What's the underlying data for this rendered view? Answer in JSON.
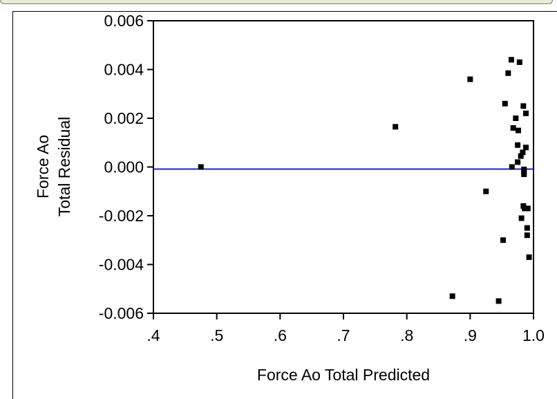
{
  "chart_data": {
    "type": "scatter",
    "title": "",
    "xlabel": "Force Ao Total Predicted",
    "ylabel_lines": [
      "Force Ao",
      "Total Residual"
    ],
    "xlim": [
      0.4,
      1.0
    ],
    "ylim": [
      -0.006,
      0.006
    ],
    "x_ticks": [
      {
        "value": 0.4,
        "label": ".4"
      },
      {
        "value": 0.5,
        "label": ".5"
      },
      {
        "value": 0.6,
        "label": ".6"
      },
      {
        "value": 0.7,
        "label": ".7"
      },
      {
        "value": 0.8,
        "label": ".8"
      },
      {
        "value": 0.9,
        "label": ".9"
      },
      {
        "value": 1.0,
        "label": "1.0"
      }
    ],
    "y_ticks": [
      {
        "value": 0.006,
        "label": "0.006"
      },
      {
        "value": 0.004,
        "label": "0.004"
      },
      {
        "value": 0.002,
        "label": "0.002"
      },
      {
        "value": 0.0,
        "label": "0.000"
      },
      {
        "value": -0.002,
        "label": "-0.002"
      },
      {
        "value": -0.004,
        "label": "-0.004"
      },
      {
        "value": -0.006,
        "label": "-0.006"
      }
    ],
    "reference_line": {
      "y": 0.0,
      "color": "#2222cc"
    },
    "marker_color": "#000000",
    "points": [
      {
        "x": 0.475,
        "y": 0.0
      },
      {
        "x": 0.782,
        "y": 0.00165
      },
      {
        "x": 0.9,
        "y": 0.0036
      },
      {
        "x": 0.925,
        "y": -0.001
      },
      {
        "x": 0.872,
        "y": -0.0053
      },
      {
        "x": 0.945,
        "y": -0.0055
      },
      {
        "x": 0.952,
        "y": -0.003
      },
      {
        "x": 0.955,
        "y": 0.0026
      },
      {
        "x": 0.96,
        "y": 0.00385
      },
      {
        "x": 0.965,
        "y": 0.0044
      },
      {
        "x": 0.966,
        "y": 0.0
      },
      {
        "x": 0.968,
        "y": 0.0016
      },
      {
        "x": 0.972,
        "y": 0.002
      },
      {
        "x": 0.975,
        "y": 0.0009
      },
      {
        "x": 0.975,
        "y": 0.0002
      },
      {
        "x": 0.976,
        "y": 0.0015
      },
      {
        "x": 0.978,
        "y": 0.0043
      },
      {
        "x": 0.98,
        "y": 0.00045
      },
      {
        "x": 0.981,
        "y": -0.0021
      },
      {
        "x": 0.983,
        "y": 0.0006
      },
      {
        "x": 0.984,
        "y": 0.0025
      },
      {
        "x": 0.984,
        "y": -0.0016
      },
      {
        "x": 0.985,
        "y": -0.0002
      },
      {
        "x": 0.985,
        "y": -0.0003
      },
      {
        "x": 0.985,
        "y": -0.0001
      },
      {
        "x": 0.986,
        "y": -0.0017
      },
      {
        "x": 0.988,
        "y": 0.0022
      },
      {
        "x": 0.988,
        "y": 0.0008
      },
      {
        "x": 0.99,
        "y": -0.0025
      },
      {
        "x": 0.99,
        "y": -0.0028
      },
      {
        "x": 0.991,
        "y": -0.0017
      },
      {
        "x": 0.993,
        "y": -0.0037
      }
    ]
  }
}
